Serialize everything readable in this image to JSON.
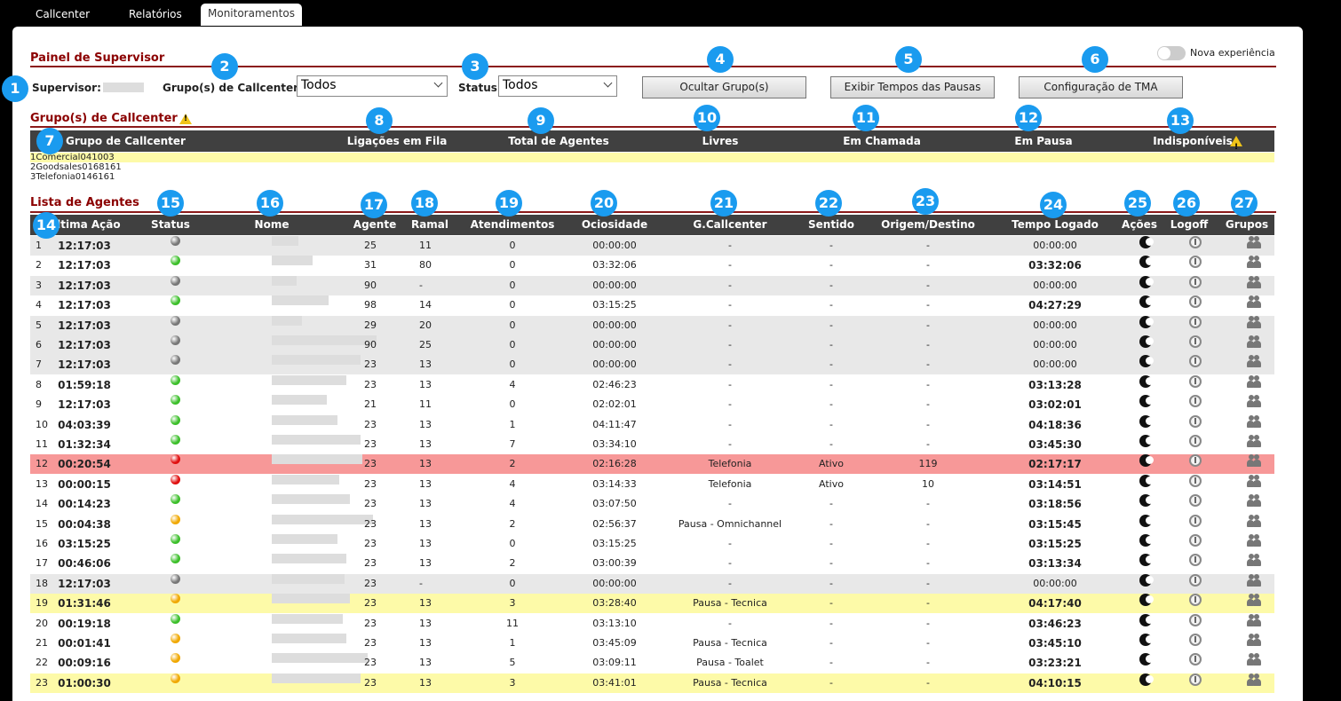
{
  "tabs": [
    {
      "label": "Callcenter"
    },
    {
      "label": "Relatórios"
    },
    {
      "label": "Monitoramentos"
    }
  ],
  "panel": {
    "title": "Painel de Supervisor",
    "nova": "Nova experiência",
    "supervisor_label": "Supervisor:",
    "grupo_label": "Grupo(s) de Callcenter:",
    "grupo_value": "Todos",
    "status_label": "Status:",
    "status_value": "Todos",
    "btn_ocultar": "Ocultar Grupo(s)",
    "btn_exibir": "Exibir Tempos das Pausas",
    "btn_tma": "Configuração de TMA"
  },
  "groups": {
    "title": "Grupo(s) de Callcenter",
    "headers": {
      "grupo": "Grupo de Callcenter",
      "fila": "Ligações em Fila",
      "total": "Total de Agentes",
      "livres": "Livres",
      "chamada": "Em Chamada",
      "pausa": "Em Pausa",
      "indisp": "Indisponíveis"
    },
    "rows": [
      {
        "n": "1",
        "name": "Comercial",
        "fila": "0",
        "total": "4",
        "livres": "1",
        "chamada": "0",
        "pausa": "0",
        "indisp": "3"
      },
      {
        "n": "2",
        "name": "Goodsales",
        "fila": "0",
        "total": "16",
        "livres": "8",
        "chamada": "1",
        "pausa": "6",
        "indisp": "1"
      },
      {
        "n": "3",
        "name": "Telefonia",
        "fila": "0",
        "total": "14",
        "livres": "6",
        "chamada": "1",
        "pausa": "6",
        "indisp": "1"
      }
    ]
  },
  "agents": {
    "title": "Lista de Agentes",
    "headers": {
      "acao": "Última Ação",
      "status": "Status",
      "nome": "Nome",
      "agente": "Agente",
      "ramal": "Ramal",
      "atend": "Atendimentos",
      "ocio": "Ociosidade",
      "gcall": "G.Callcenter",
      "sentido": "Sentido",
      "origem": "Origem/Destino",
      "tempo": "Tempo Logado",
      "acoes": "Ações",
      "logoff": "Logoff",
      "grupos": "Grupos"
    },
    "rows": [
      {
        "n": "1",
        "acao": "12:17:03",
        "status": "gray",
        "agente": "25",
        "ramal": "11",
        "atend": "0",
        "ocio": "00:00:00",
        "gcall": "-",
        "sentido": "-",
        "origem": "-",
        "tempo": "00:00:00",
        "tb": false,
        "bg": "#e8e8e8"
      },
      {
        "n": "2",
        "acao": "12:17:03",
        "status": "green",
        "agente": "31",
        "ramal": "80",
        "atend": "0",
        "ocio": "03:32:06",
        "gcall": "-",
        "sentido": "-",
        "origem": "-",
        "tempo": "03:32:06",
        "tb": true,
        "bg": "#ffffff"
      },
      {
        "n": "3",
        "acao": "12:17:03",
        "status": "gray",
        "agente": "90",
        "ramal": "-",
        "atend": "0",
        "ocio": "00:00:00",
        "gcall": "-",
        "sentido": "-",
        "origem": "-",
        "tempo": "00:00:00",
        "tb": false,
        "bg": "#e8e8e8"
      },
      {
        "n": "4",
        "acao": "12:17:03",
        "status": "green",
        "agente": "98",
        "ramal": "14",
        "atend": "0",
        "ocio": "03:15:25",
        "gcall": "-",
        "sentido": "-",
        "origem": "-",
        "tempo": "04:27:29",
        "tb": true,
        "bg": "#ffffff"
      },
      {
        "n": "5",
        "acao": "12:17:03",
        "status": "gray",
        "agente": "29",
        "ramal": "20",
        "atend": "0",
        "ocio": "00:00:00",
        "gcall": "-",
        "sentido": "-",
        "origem": "-",
        "tempo": "00:00:00",
        "tb": false,
        "bg": "#e8e8e8"
      },
      {
        "n": "6",
        "acao": "12:17:03",
        "status": "gray",
        "agente": "90",
        "ramal": "25",
        "atend": "0",
        "ocio": "00:00:00",
        "gcall": "-",
        "sentido": "-",
        "origem": "-",
        "tempo": "00:00:00",
        "tb": false,
        "bg": "#e8e8e8"
      },
      {
        "n": "7",
        "acao": "12:17:03",
        "status": "gray",
        "agente": "23",
        "ramal": "13",
        "atend": "0",
        "ocio": "00:00:00",
        "gcall": "-",
        "sentido": "-",
        "origem": "-",
        "tempo": "00:00:00",
        "tb": false,
        "bg": "#e8e8e8"
      },
      {
        "n": "8",
        "acao": "01:59:18",
        "status": "green",
        "agente": "23",
        "ramal": "13",
        "atend": "4",
        "ocio": "02:46:23",
        "gcall": "-",
        "sentido": "-",
        "origem": "-",
        "tempo": "03:13:28",
        "tb": true,
        "bg": "#ffffff"
      },
      {
        "n": "9",
        "acao": "12:17:03",
        "status": "green",
        "agente": "21",
        "ramal": "11",
        "atend": "0",
        "ocio": "02:02:01",
        "gcall": "-",
        "sentido": "-",
        "origem": "-",
        "tempo": "03:02:01",
        "tb": true,
        "bg": "#ffffff"
      },
      {
        "n": "10",
        "acao": "04:03:39",
        "status": "green",
        "agente": "23",
        "ramal": "13",
        "atend": "1",
        "ocio": "04:11:47",
        "gcall": "-",
        "sentido": "-",
        "origem": "-",
        "tempo": "04:18:36",
        "tb": true,
        "bg": "#ffffff"
      },
      {
        "n": "11",
        "acao": "01:32:34",
        "status": "green",
        "agente": "23",
        "ramal": "13",
        "atend": "7",
        "ocio": "03:34:10",
        "gcall": "-",
        "sentido": "-",
        "origem": "-",
        "tempo": "03:45:30",
        "tb": true,
        "bg": "#ffffff"
      },
      {
        "n": "12",
        "acao": "00:20:54",
        "status": "red",
        "agente": "23",
        "ramal": "13",
        "atend": "2",
        "ocio": "02:16:28",
        "gcall": "Telefonia",
        "sentido": "Ativo",
        "origem": "119",
        "tempo": "02:17:17",
        "tb": true,
        "bg": "#f79898"
      },
      {
        "n": "13",
        "acao": "00:00:15",
        "status": "red",
        "agente": "23",
        "ramal": "13",
        "atend": "4",
        "ocio": "03:14:33",
        "gcall": "Telefonia",
        "sentido": "Ativo",
        "origem": "10",
        "tempo": "03:14:51",
        "tb": true,
        "bg": "#ffffff"
      },
      {
        "n": "14",
        "acao": "00:14:23",
        "status": "green",
        "agente": "23",
        "ramal": "13",
        "atend": "4",
        "ocio": "03:07:50",
        "gcall": "-",
        "sentido": "-",
        "origem": "-",
        "tempo": "03:18:56",
        "tb": true,
        "bg": "#ffffff"
      },
      {
        "n": "15",
        "acao": "00:04:38",
        "status": "orange",
        "agente": "23",
        "ramal": "13",
        "atend": "2",
        "ocio": "02:56:37",
        "gcall": "Pausa - Omnichannel",
        "sentido": "-",
        "origem": "-",
        "tempo": "03:15:45",
        "tb": true,
        "bg": "#ffffff"
      },
      {
        "n": "16",
        "acao": "03:15:25",
        "status": "green",
        "agente": "23",
        "ramal": "13",
        "atend": "0",
        "ocio": "03:15:25",
        "gcall": "-",
        "sentido": "-",
        "origem": "-",
        "tempo": "03:15:25",
        "tb": true,
        "bg": "#ffffff"
      },
      {
        "n": "17",
        "acao": "00:46:06",
        "status": "green",
        "agente": "23",
        "ramal": "13",
        "atend": "2",
        "ocio": "03:00:39",
        "gcall": "-",
        "sentido": "-",
        "origem": "-",
        "tempo": "03:13:34",
        "tb": true,
        "bg": "#ffffff"
      },
      {
        "n": "18",
        "acao": "12:17:03",
        "status": "gray",
        "agente": "23",
        "ramal": "-",
        "atend": "0",
        "ocio": "00:00:00",
        "gcall": "-",
        "sentido": "-",
        "origem": "-",
        "tempo": "00:00:00",
        "tb": false,
        "bg": "#e8e8e8"
      },
      {
        "n": "19",
        "acao": "01:31:46",
        "status": "orange",
        "agente": "23",
        "ramal": "13",
        "atend": "3",
        "ocio": "03:28:40",
        "gcall": "Pausa - Tecnica",
        "sentido": "-",
        "origem": "-",
        "tempo": "04:17:40",
        "tb": true,
        "bg": "#fdfaa8"
      },
      {
        "n": "20",
        "acao": "00:19:18",
        "status": "green",
        "agente": "23",
        "ramal": "13",
        "atend": "11",
        "ocio": "03:13:10",
        "gcall": "-",
        "sentido": "-",
        "origem": "-",
        "tempo": "03:46:23",
        "tb": true,
        "bg": "#ffffff"
      },
      {
        "n": "21",
        "acao": "00:01:41",
        "status": "orange",
        "agente": "23",
        "ramal": "13",
        "atend": "1",
        "ocio": "03:45:09",
        "gcall": "Pausa - Tecnica",
        "sentido": "-",
        "origem": "-",
        "tempo": "03:45:10",
        "tb": true,
        "bg": "#ffffff"
      },
      {
        "n": "22",
        "acao": "00:09:16",
        "status": "orange",
        "agente": "23",
        "ramal": "13",
        "atend": "5",
        "ocio": "03:09:11",
        "gcall": "Pausa - Toalet",
        "sentido": "-",
        "origem": "-",
        "tempo": "03:23:21",
        "tb": true,
        "bg": "#ffffff"
      },
      {
        "n": "23",
        "acao": "01:00:30",
        "status": "orange",
        "agente": "23",
        "ramal": "13",
        "atend": "3",
        "ocio": "03:41:01",
        "gcall": "Pausa - Tecnica",
        "sentido": "-",
        "origem": "-",
        "tempo": "04:10:15",
        "tb": true,
        "bg": "#fdfaa8"
      }
    ]
  },
  "badges": [
    "1",
    "2",
    "3",
    "4",
    "5",
    "6",
    "7",
    "8",
    "9",
    "10",
    "11",
    "12",
    "13",
    "14",
    "15",
    "16",
    "17",
    "18",
    "19",
    "20",
    "21",
    "22",
    "23",
    "24",
    "25",
    "26",
    "27"
  ],
  "colors": {
    "gray": "#777777",
    "green": "#3cbf2a",
    "red": "#e01010",
    "orange": "#f0a800",
    "accent": "#8b0000",
    "badge": "#1a9bef"
  }
}
